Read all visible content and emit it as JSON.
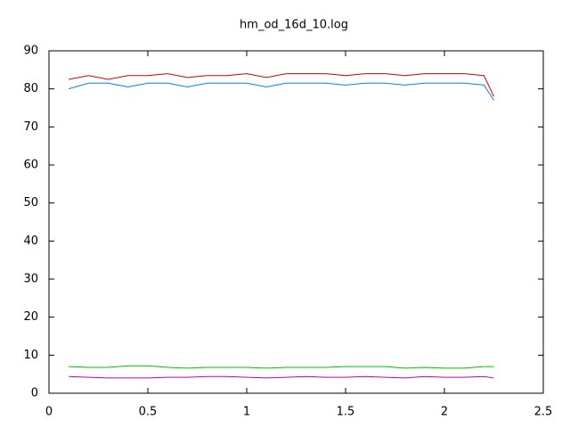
{
  "chart_data": {
    "type": "line",
    "title": "hm_od_16d_10.log",
    "x": [
      0.1,
      0.2,
      0.3,
      0.4,
      0.5,
      0.6,
      0.7,
      0.8,
      0.9,
      1.0,
      1.1,
      1.2,
      1.3,
      1.4,
      1.5,
      1.6,
      1.7,
      1.8,
      1.9,
      2.0,
      2.1,
      2.2,
      2.25
    ],
    "series": [
      {
        "color": "#d00000",
        "values": [
          82.5,
          83.5,
          82.5,
          83.5,
          83.5,
          84,
          83,
          83.5,
          83.5,
          84,
          83,
          84,
          84,
          84,
          83.5,
          84,
          84,
          83.5,
          84,
          84,
          84,
          83.5,
          78
        ]
      },
      {
        "color": "#0080ff",
        "values": [
          80,
          81.5,
          81.5,
          80.5,
          81.5,
          81.5,
          80.5,
          81.5,
          81.5,
          81.5,
          80.5,
          81.5,
          81.5,
          81.5,
          81,
          81.5,
          81.5,
          81,
          81.5,
          81.5,
          81.5,
          81,
          77
        ]
      },
      {
        "color": "#00c000",
        "values": [
          7,
          6.8,
          6.8,
          7.2,
          7.2,
          6.8,
          6.6,
          6.8,
          6.8,
          6.8,
          6.6,
          6.8,
          6.8,
          6.8,
          7,
          7,
          7,
          6.6,
          6.8,
          6.6,
          6.6,
          7,
          7
        ]
      },
      {
        "color": "#c000c0",
        "values": [
          4.4,
          4.2,
          4,
          4,
          4,
          4.2,
          4.2,
          4.4,
          4.4,
          4.2,
          4,
          4.2,
          4.4,
          4.2,
          4.2,
          4.4,
          4.2,
          4,
          4.4,
          4.2,
          4.2,
          4.4,
          4
        ]
      }
    ],
    "xlim": [
      0,
      2.5
    ],
    "xticks": [
      0,
      0.5,
      1,
      1.5,
      2,
      2.5
    ],
    "ylim": [
      0,
      90
    ],
    "yticks": [
      0,
      10,
      20,
      30,
      40,
      50,
      60,
      70,
      80,
      90
    ]
  }
}
